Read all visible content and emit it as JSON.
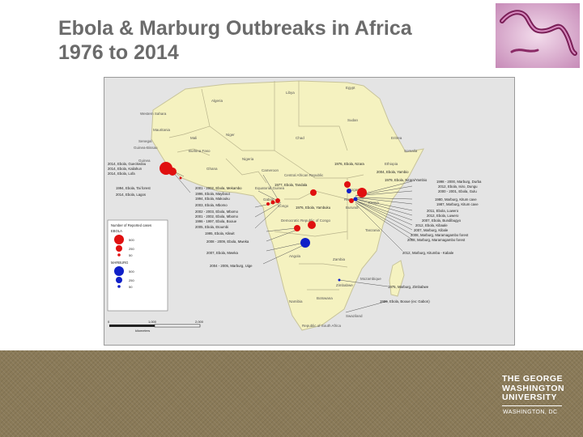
{
  "slide": {
    "title_line1": "Ebola & Marburg Outbreaks in Africa",
    "title_line2": "1976 to 2014"
  },
  "map": {
    "countries": [
      "Algeria",
      "Western Sahara",
      "Mauritania",
      "Mali",
      "Senegal",
      "Guinea-Bissau",
      "Guinea",
      "Burkina Faso",
      "Niger",
      "Chad",
      "Sudan",
      "Eritrea",
      "Ethiopia",
      "Somalia",
      "Egypt",
      "Libya",
      "Nigeria",
      "Ghana",
      "Cameroon",
      "Central African Republic",
      "Equatorial Guinea",
      "Gabon",
      "Congo",
      "Uganda",
      "Kenya",
      "Rwanda",
      "Burundi",
      "Democratic Republic of Congo",
      "Tanzania",
      "Angola",
      "Zambia",
      "Mozambique",
      "Zimbabwe",
      "Namibia",
      "Botswana",
      "Swaziland",
      "Republic of South Africa"
    ],
    "labels_left": [
      "2014, Ebola, Gueckedou",
      "2014, Ebola, Kailahun",
      "2014, Ebola, Lofa",
      "1994, Ebola, Tai forest",
      "2014, Ebola, Lagos"
    ],
    "labels_center": [
      "2001 - 2002, Ebola, Mekambo",
      "1996, Ebola, Mayibout",
      "1994, Ebola, Makouku",
      "2003, Ebola, Mbomo",
      "2002 - 2003, Ebola, Mbomo",
      "2001 - 2002, Ebola, Mbomo",
      "1996 - 1997, Ebola, Booue",
      "2005, Ebola, Etoumbi",
      "1995, Ebola, Kikwit",
      "2008 - 2009, Ebola, Mweka",
      "2007, Ebola, Mweka",
      "2004 - 2005, Marburg, Uige"
    ],
    "labels_top": [
      "1976, Ebola, Nzara",
      "2004, Ebola, Yambio",
      "1977, Ebola, Tandala",
      "1979, Ebola, Nzara/Yambio",
      "1976, Ebola, Yambuku"
    ],
    "labels_right": [
      "1998 - 2000, Marburg, Durba",
      "2012, Ebola, Isiro, Dungu",
      "2000 - 2001, Ebola, Gulu",
      "1980, Marburg, Kitum cave",
      "1987, Marburg, Kitum cave",
      "2011, Ebola, Luwero",
      "2012, Ebola, Luwero",
      "2007, Ebola, Bundibugyo",
      "2012, Ebola, Kibaale",
      "2007, Marburg, Kibale",
      "2008, Marburg, Maramagambo forest",
      "2008, Marburg, Maramagambo forest",
      "2012, Marburg, Kitumba - Kabale"
    ],
    "labels_south": [
      "1975, Marburg, Zimbabwe",
      "1996, Ebola, Booue (ex: Gabon)"
    ],
    "legend": {
      "title": "Number of Reported cases",
      "ebola_label": "EBOLA",
      "marburg_label": "MARBURG",
      "sizes": [
        "500",
        "250",
        "50"
      ],
      "ebola_color": "#e01010",
      "marburg_color": "#1020c8"
    },
    "scale": {
      "ticks": [
        "0",
        "1,000",
        "2,000"
      ],
      "unit": "kilometers"
    }
  },
  "branding": {
    "line1": "THE GEORGE",
    "line2": "WASHINGTON",
    "line3": "UNIVERSITY",
    "city": "WASHINGTON, DC"
  }
}
